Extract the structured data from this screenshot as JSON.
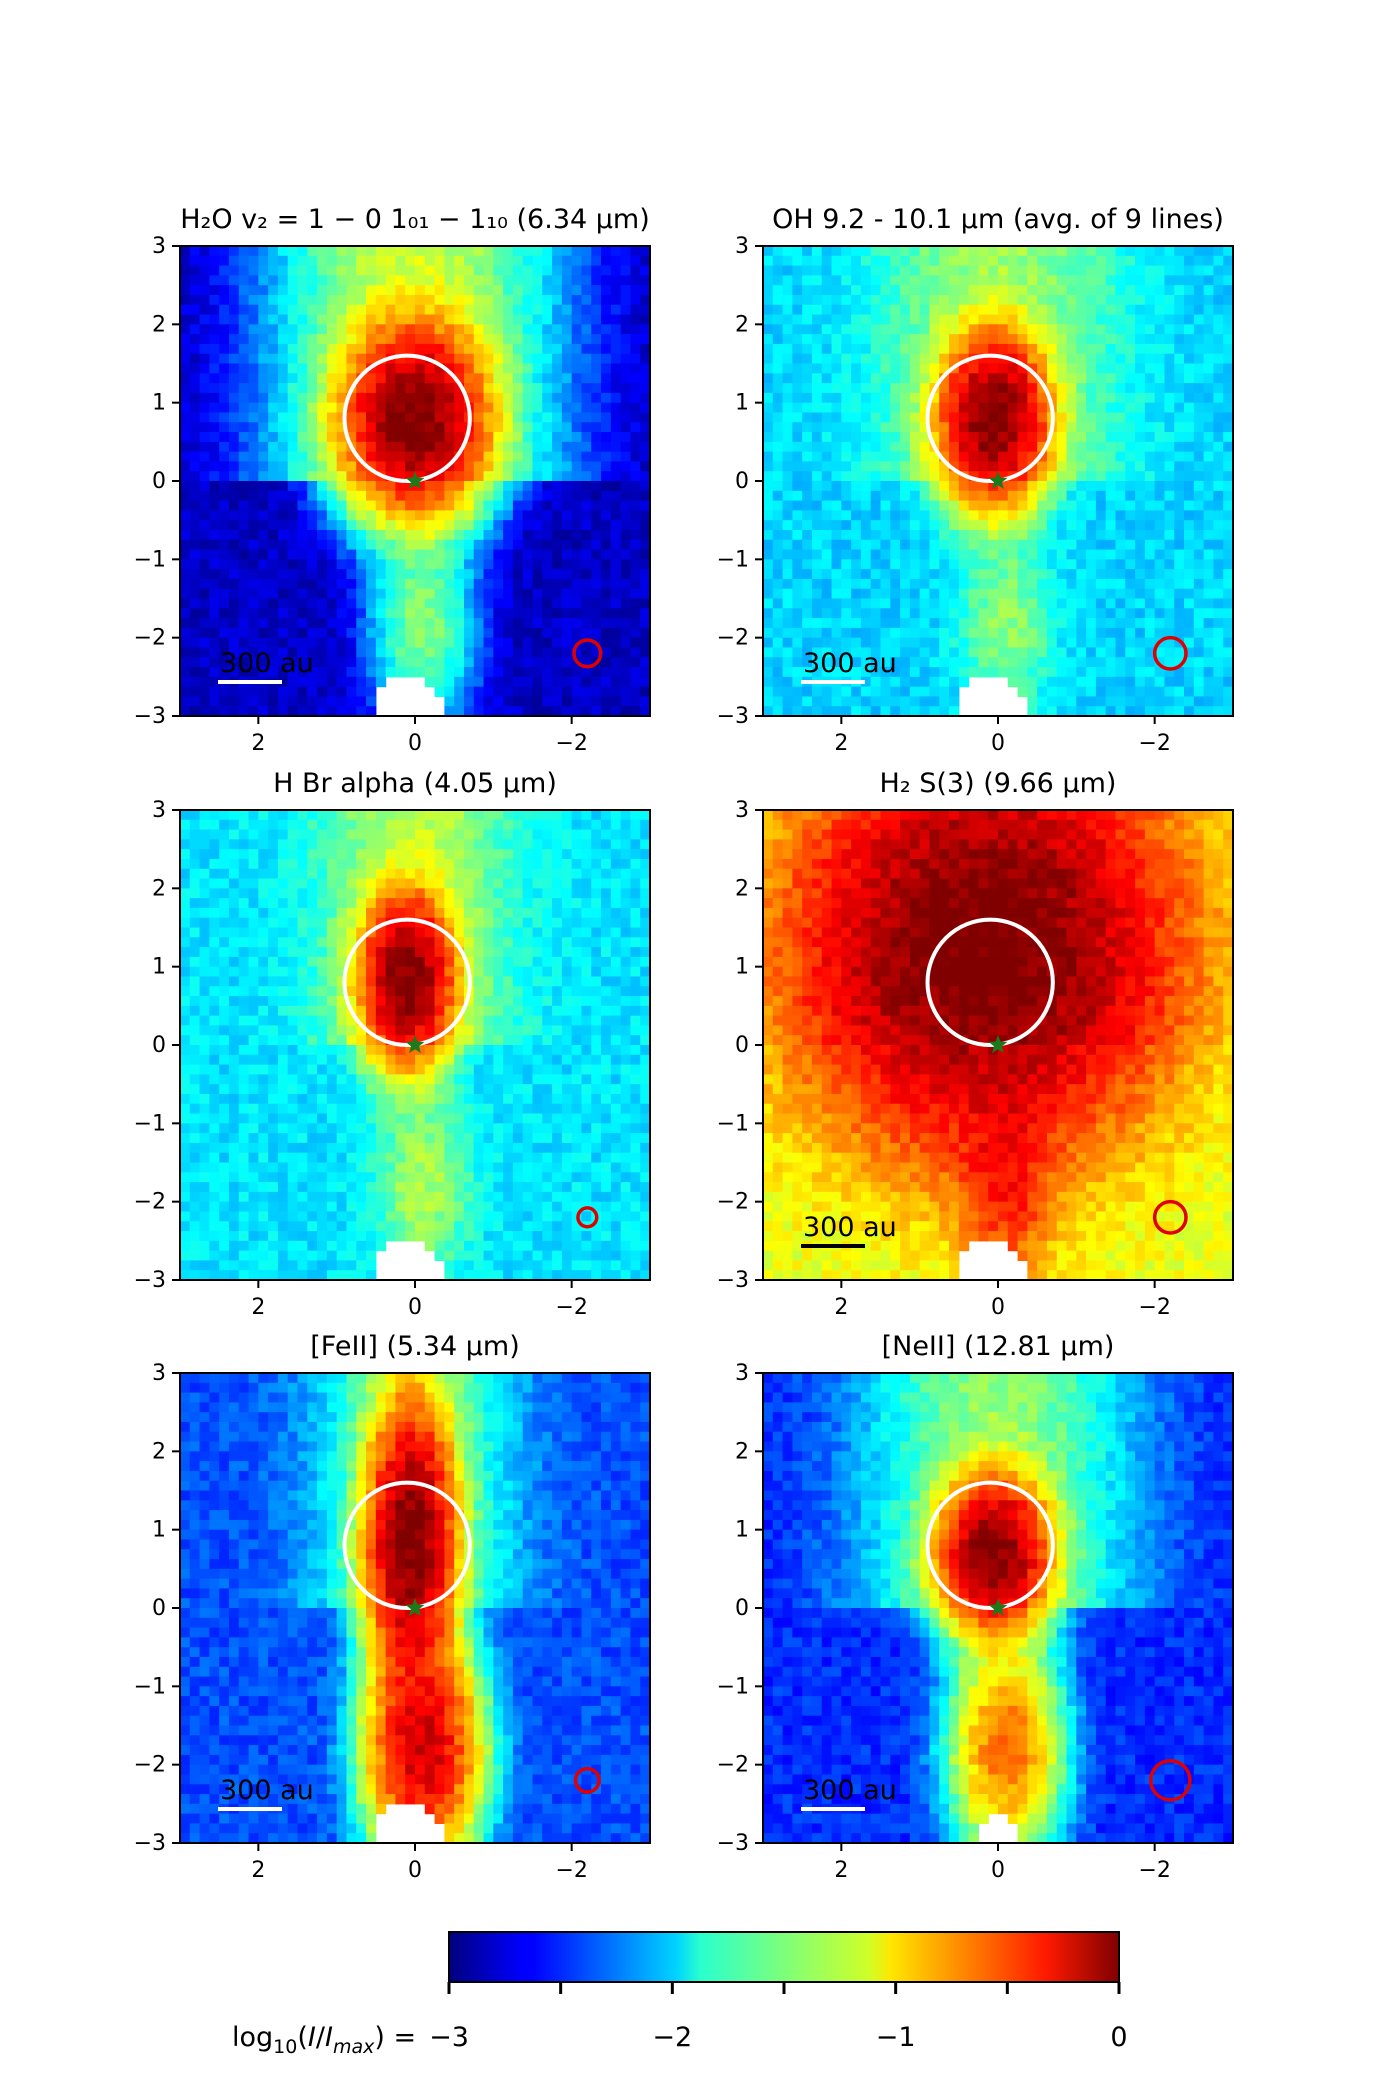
{
  "figure": {
    "colormap": "jet",
    "colorbar": {
      "label": "log₁₀(I/I_max) =",
      "label_html": [
        "log",
        "10",
        "(",
        "I",
        "/",
        "I",
        "max",
        ") ="
      ],
      "range": [
        -3,
        0
      ],
      "ticks": [
        -3,
        -2,
        -1,
        0
      ],
      "tick_labels": [
        "−3",
        "−2",
        "−1",
        "0"
      ]
    }
  },
  "chart_data": [
    {
      "type": "heatmap",
      "title": "H₂O v₂ = 1 − 0 1₀₁ − 1₁₀ (6.34 μm)",
      "xlim": [
        3,
        -3
      ],
      "ylim": [
        -3,
        3
      ],
      "xticks": [
        2,
        0,
        -2
      ],
      "xtick_labels": [
        "2",
        "0",
        "−2"
      ],
      "yticks": [
        3,
        2,
        1,
        0,
        -1,
        -2,
        -3
      ],
      "ytick_labels": [
        "3",
        "2",
        "1",
        "0",
        "−1",
        "−2",
        "−3"
      ],
      "aperture": {
        "center": [
          0.1,
          0.8
        ],
        "radius": 0.8,
        "color": "#ffffff"
      },
      "star": {
        "position": [
          0,
          0
        ],
        "color": "#1b7a1b"
      },
      "beam": {
        "center": [
          -2.2,
          -2.2
        ],
        "radius": 0.17,
        "color": "#e00000"
      },
      "scale_bar": {
        "label": "300 au",
        "color": "#ffffff"
      },
      "peak": [
        0.0,
        0.8
      ],
      "peak_width": [
        0.45,
        0.6
      ],
      "background": -2.8,
      "jet_level": -1.3,
      "jet_width": 0.9,
      "blue_jet": -1.5
    },
    {
      "type": "heatmap",
      "title": "OH 9.2 - 10.1 μm (avg. of 9 lines)",
      "xlim": [
        3,
        -3
      ],
      "ylim": [
        -3,
        3
      ],
      "xticks": [
        2,
        0,
        -2
      ],
      "xtick_labels": [
        "2",
        "0",
        "−2"
      ],
      "yticks": [
        3,
        2,
        1,
        0,
        -1,
        -2,
        -3
      ],
      "ytick_labels": [
        "3",
        "2",
        "1",
        "0",
        "−1",
        "−2",
        "−3"
      ],
      "aperture": {
        "center": [
          0.1,
          0.8
        ],
        "radius": 0.8,
        "color": "#ffffff"
      },
      "star": {
        "position": [
          0,
          0
        ],
        "color": "#1b7a1b"
      },
      "beam": {
        "center": [
          -2.2,
          -2.2
        ],
        "radius": 0.2,
        "color": "#e00000"
      },
      "scale_bar": {
        "label": "300 au",
        "color": "#ffffff"
      },
      "peak": [
        0.05,
        0.8
      ],
      "peak_width": [
        0.35,
        0.55
      ],
      "background": -2.0,
      "jet_level": -1.55,
      "jet_width": 0.9,
      "blue_jet": -1.6
    },
    {
      "type": "heatmap",
      "title": "H Br alpha (4.05 μm)",
      "xlim": [
        3,
        -3
      ],
      "ylim": [
        -3,
        3
      ],
      "xticks": [
        2,
        0,
        -2
      ],
      "xtick_labels": [
        "2",
        "0",
        "−2"
      ],
      "yticks": [
        3,
        2,
        1,
        0,
        -1,
        -2,
        -3
      ],
      "ytick_labels": [
        "3",
        "2",
        "1",
        "0",
        "−1",
        "−2",
        "−3"
      ],
      "aperture": {
        "center": [
          0.1,
          0.8
        ],
        "radius": 0.8,
        "color": "#ffffff"
      },
      "star": {
        "position": [
          0,
          0
        ],
        "color": "#1b7a1b"
      },
      "beam": {
        "center": [
          -2.2,
          -2.2
        ],
        "radius": 0.12,
        "color": "#e00000"
      },
      "scale_bar": {
        "label": "",
        "color": "#ffffff"
      },
      "peak": [
        0.1,
        0.85
      ],
      "peak_width": [
        0.3,
        0.55
      ],
      "background": -1.95,
      "jet_level": -1.45,
      "jet_width": 0.7,
      "blue_jet": -1.5
    },
    {
      "type": "heatmap",
      "title": "H₂ S(3) (9.66 μm)",
      "xlim": [
        3,
        -3
      ],
      "ylim": [
        -3,
        3
      ],
      "xticks": [
        2,
        0,
        -2
      ],
      "xtick_labels": [
        "2",
        "0",
        "−2"
      ],
      "yticks": [
        3,
        2,
        1,
        0,
        -1,
        -2,
        -3
      ],
      "ytick_labels": [
        "3",
        "2",
        "1",
        "0",
        "−1",
        "−2",
        "−3"
      ],
      "aperture": {
        "center": [
          0.1,
          0.8
        ],
        "radius": 0.8,
        "color": "#ffffff"
      },
      "star": {
        "position": [
          0,
          0
        ],
        "color": "#1b7a1b"
      },
      "beam": {
        "center": [
          -2.2,
          -2.2
        ],
        "radius": 0.2,
        "color": "#e00000"
      },
      "scale_bar": {
        "label": "300 au",
        "color": "#000000"
      },
      "peak": [
        0.2,
        1.2
      ],
      "peak_width": [
        1.3,
        1.4
      ],
      "background": -1.2,
      "jet_level": -1.0,
      "jet_width": 1.4,
      "blue_jet": -0.6
    },
    {
      "type": "heatmap",
      "title": "[FeII] (5.34 μm)",
      "xlim": [
        3,
        -3
      ],
      "ylim": [
        -3,
        3
      ],
      "xticks": [
        2,
        0,
        -2
      ],
      "xtick_labels": [
        "2",
        "0",
        "−2"
      ],
      "yticks": [
        3,
        2,
        1,
        0,
        -1,
        -2,
        -3
      ],
      "ytick_labels": [
        "3",
        "2",
        "1",
        "0",
        "−1",
        "−2",
        "−3"
      ],
      "aperture": {
        "center": [
          0.1,
          0.8
        ],
        "radius": 0.8,
        "color": "#ffffff"
      },
      "star": {
        "position": [
          0,
          0
        ],
        "color": "#1b7a1b"
      },
      "beam": {
        "center": [
          -2.2,
          -2.2
        ],
        "radius": 0.15,
        "color": "#e00000"
      },
      "scale_bar": {
        "label": "300 au",
        "color": "#ffffff"
      },
      "peak": [
        0.05,
        0.85
      ],
      "peak_width": [
        0.28,
        0.9
      ],
      "background": -2.4,
      "jet_level": -1.6,
      "jet_width": 0.7,
      "blue_jet": -0.25
    },
    {
      "type": "heatmap",
      "title": "[NeII] (12.81 μm)",
      "xlim": [
        3,
        -3
      ],
      "ylim": [
        -3,
        3
      ],
      "xticks": [
        2,
        0,
        -2
      ],
      "xtick_labels": [
        "2",
        "0",
        "−2"
      ],
      "yticks": [
        3,
        2,
        1,
        0,
        -1,
        -2,
        -3
      ],
      "ytick_labels": [
        "3",
        "2",
        "1",
        "0",
        "−1",
        "−2",
        "−3"
      ],
      "aperture": {
        "center": [
          0.1,
          0.8
        ],
        "radius": 0.8,
        "color": "#ffffff"
      },
      "star": {
        "position": [
          0,
          0
        ],
        "color": "#1b7a1b"
      },
      "beam": {
        "center": [
          -2.2,
          -2.2
        ],
        "radius": 0.25,
        "color": "#e00000"
      },
      "scale_bar": {
        "label": "300 au",
        "color": "#ffffff"
      },
      "peak": [
        0.05,
        0.7
      ],
      "peak_width": [
        0.35,
        0.5
      ],
      "background": -2.5,
      "jet_level": -1.5,
      "jet_width": 0.9,
      "blue_jet": -0.7
    }
  ]
}
